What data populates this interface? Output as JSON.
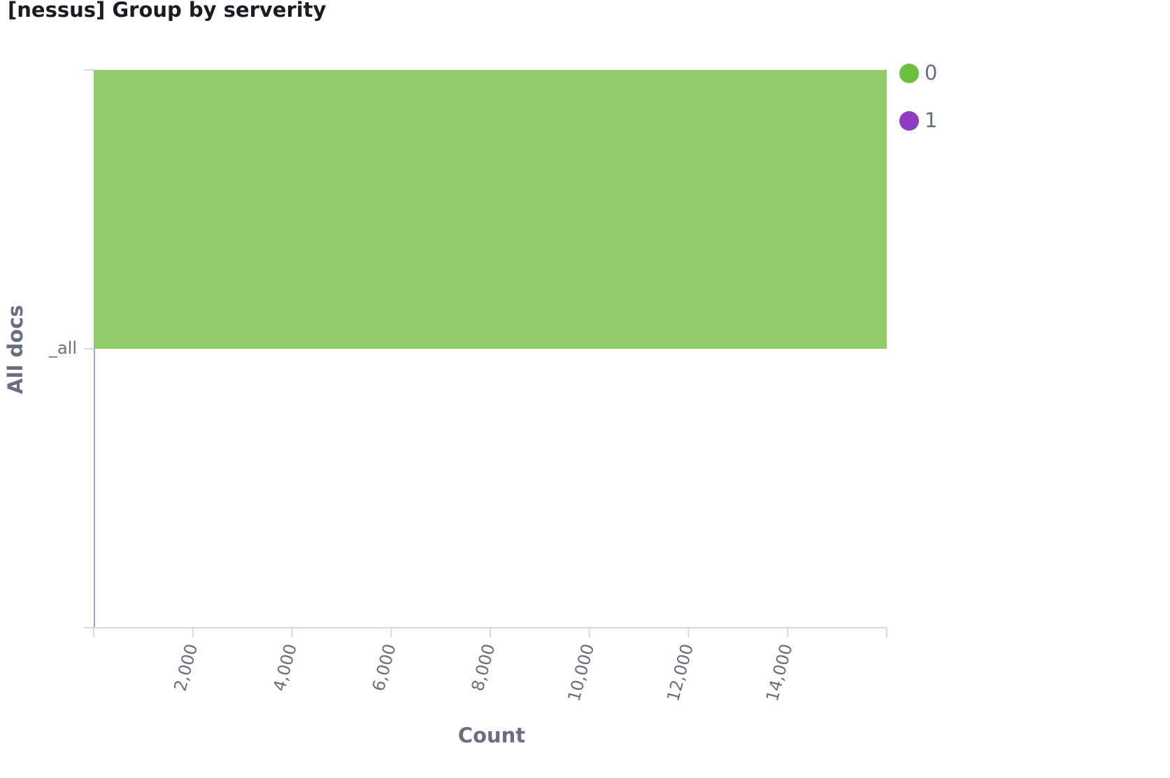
{
  "panel": {
    "title": "[nessus] Group by serverity"
  },
  "colors": {
    "series_0": "#54b399",
    "series_1": "#9170b8",
    "bar_fill": "#91cb6a",
    "legend_0": "#6dbf40",
    "legend_1": "#8e3dc2",
    "axis": "#d3dae6",
    "text": "#69707d",
    "title": "#1a1c21"
  },
  "chart_data": {
    "type": "bar",
    "orientation": "horizontal",
    "stacked": true,
    "categories": [
      "_all"
    ],
    "series": [
      {
        "name": "0",
        "values": [
          16000
        ]
      },
      {
        "name": "1",
        "values": [
          0
        ]
      }
    ],
    "xlabel": "Count",
    "ylabel": "All docs",
    "xlim": [
      0,
      16000
    ],
    "xticks": [
      2000,
      4000,
      6000,
      8000,
      10000,
      12000,
      14000
    ],
    "xtick_labels": [
      "2,000",
      "4,000",
      "6,000",
      "8,000",
      "10,000",
      "12,000",
      "14,000"
    ],
    "grid": false,
    "legend_position": "top-right"
  }
}
